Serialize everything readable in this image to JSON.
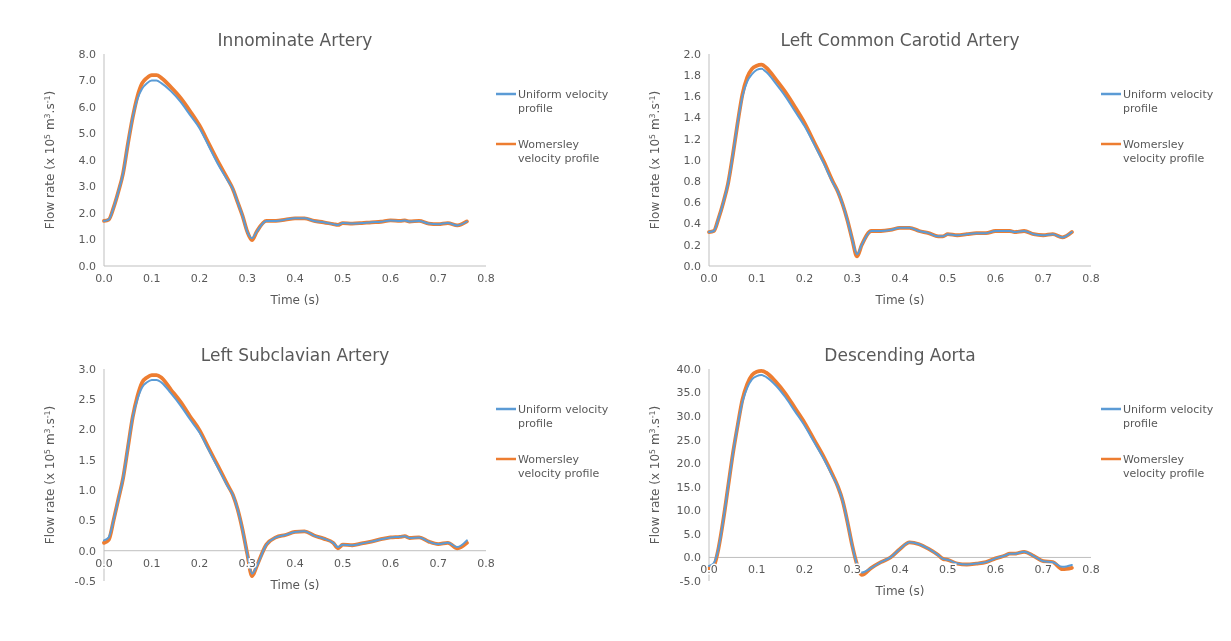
{
  "chart_data": [
    {
      "type": "line",
      "title": "Innominate Artery",
      "xlabel": "Time (s)",
      "ylabel": "Flow rate (x 10$^{5}$ m$^{3}$.s$^{-1}$)",
      "legend": "right",
      "xlim": [
        0,
        0.8
      ],
      "xticks": [
        {
          "value": 0,
          "label": "0.0"
        },
        {
          "value": 0.1,
          "label": "0.1"
        },
        {
          "value": 0.2,
          "label": "0.2"
        },
        {
          "value": 0.3,
          "label": "0.3"
        },
        {
          "value": 0.4,
          "label": "0.4"
        },
        {
          "value": 0.5,
          "label": "0.5"
        },
        {
          "value": 0.6,
          "label": "0.6"
        },
        {
          "value": 0.7,
          "label": "0.7"
        },
        {
          "value": 0.8,
          "label": "0.8"
        }
      ],
      "ylim": [
        0,
        8
      ],
      "yticks": [
        {
          "value": 0,
          "label": "0.0"
        },
        {
          "value": 1,
          "label": "1.0"
        },
        {
          "value": 2,
          "label": "2.0"
        },
        {
          "value": 3,
          "label": "3.0"
        },
        {
          "value": 4,
          "label": "4.0"
        },
        {
          "value": 5,
          "label": "5.0"
        },
        {
          "value": 6,
          "label": "6.0"
        },
        {
          "value": 7,
          "label": "7.0"
        },
        {
          "value": 8,
          "label": "8.0"
        }
      ],
      "x": [
        0,
        0.01,
        0.02,
        0.03,
        0.04,
        0.05,
        0.06,
        0.07,
        0.08,
        0.09,
        0.1,
        0.11,
        0.12,
        0.14,
        0.16,
        0.18,
        0.2,
        0.22,
        0.24,
        0.26,
        0.27,
        0.28,
        0.29,
        0.3,
        0.31,
        0.32,
        0.34,
        0.36,
        0.38,
        0.4,
        0.42,
        0.44,
        0.46,
        0.48,
        0.49,
        0.5,
        0.52,
        0.54,
        0.56,
        0.58,
        0.6,
        0.62,
        0.63,
        0.64,
        0.66,
        0.68,
        0.7,
        0.72,
        0.74,
        0.76
      ],
      "series": [
        {
          "name": "Uniform velocity profile",
          "color": "#5b9bd5",
          "values": [
            1.7,
            1.75,
            2.2,
            2.8,
            3.5,
            4.6,
            5.6,
            6.3,
            6.7,
            6.9,
            7.0,
            7.0,
            6.9,
            6.6,
            6.2,
            5.7,
            5.2,
            4.5,
            3.8,
            3.2,
            2.9,
            2.4,
            1.9,
            1.3,
            1.05,
            1.3,
            1.7,
            1.7,
            1.75,
            1.8,
            1.8,
            1.7,
            1.65,
            1.58,
            1.55,
            1.62,
            1.6,
            1.62,
            1.65,
            1.67,
            1.72,
            1.7,
            1.72,
            1.68,
            1.7,
            1.6,
            1.58,
            1.62,
            1.53,
            1.68
          ]
        },
        {
          "name": "Womersley velocity profile",
          "color": "#ed7d31",
          "values": [
            1.7,
            1.75,
            2.2,
            2.8,
            3.5,
            4.6,
            5.6,
            6.4,
            6.9,
            7.1,
            7.2,
            7.2,
            7.1,
            6.75,
            6.35,
            5.85,
            5.3,
            4.6,
            3.9,
            3.25,
            2.9,
            2.4,
            1.9,
            1.3,
            0.98,
            1.3,
            1.7,
            1.7,
            1.75,
            1.8,
            1.8,
            1.7,
            1.65,
            1.58,
            1.55,
            1.62,
            1.6,
            1.62,
            1.65,
            1.67,
            1.72,
            1.7,
            1.72,
            1.68,
            1.7,
            1.6,
            1.58,
            1.62,
            1.53,
            1.68
          ]
        }
      ]
    },
    {
      "type": "line",
      "title": "Left Common Carotid Artery",
      "xlabel": "Time (s)",
      "ylabel": "Flow rate (x 10$^{5}$ m$^{3}$.s$^{-1}$)",
      "legend": "right",
      "xlim": [
        0,
        0.8
      ],
      "xticks": [
        {
          "value": 0,
          "label": "0.0"
        },
        {
          "value": 0.1,
          "label": "0.1"
        },
        {
          "value": 0.2,
          "label": "0.2"
        },
        {
          "value": 0.3,
          "label": "0.3"
        },
        {
          "value": 0.4,
          "label": "0.4"
        },
        {
          "value": 0.5,
          "label": "0.5"
        },
        {
          "value": 0.6,
          "label": "0.6"
        },
        {
          "value": 0.7,
          "label": "0.7"
        },
        {
          "value": 0.8,
          "label": "0.8"
        }
      ],
      "ylim": [
        0,
        2
      ],
      "yticks": [
        {
          "value": 0,
          "label": "0.0"
        },
        {
          "value": 0.2,
          "label": "0.2"
        },
        {
          "value": 0.4,
          "label": "0.4"
        },
        {
          "value": 0.6,
          "label": "0.6"
        },
        {
          "value": 0.8,
          "label": "0.8"
        },
        {
          "value": 1,
          "label": "1.0"
        },
        {
          "value": 1.2,
          "label": "1.2"
        },
        {
          "value": 1.4,
          "label": "1.4"
        },
        {
          "value": 1.6,
          "label": "1.6"
        },
        {
          "value": 1.8,
          "label": "1.8"
        },
        {
          "value": 2,
          "label": "2.0"
        }
      ],
      "x": [
        0,
        0.01,
        0.02,
        0.03,
        0.04,
        0.05,
        0.06,
        0.07,
        0.08,
        0.09,
        0.1,
        0.11,
        0.12,
        0.14,
        0.16,
        0.18,
        0.2,
        0.22,
        0.24,
        0.26,
        0.27,
        0.28,
        0.29,
        0.3,
        0.31,
        0.32,
        0.34,
        0.36,
        0.38,
        0.4,
        0.42,
        0.44,
        0.46,
        0.48,
        0.49,
        0.5,
        0.52,
        0.54,
        0.56,
        0.58,
        0.6,
        0.62,
        0.63,
        0.64,
        0.66,
        0.68,
        0.7,
        0.72,
        0.74,
        0.76
      ],
      "series": [
        {
          "name": "Uniform velocity profile",
          "color": "#5b9bd5",
          "values": [
            0.32,
            0.33,
            0.45,
            0.6,
            0.78,
            1.05,
            1.35,
            1.6,
            1.74,
            1.81,
            1.85,
            1.86,
            1.83,
            1.72,
            1.6,
            1.46,
            1.32,
            1.15,
            0.97,
            0.78,
            0.7,
            0.58,
            0.43,
            0.25,
            0.11,
            0.2,
            0.33,
            0.33,
            0.34,
            0.36,
            0.36,
            0.33,
            0.31,
            0.28,
            0.28,
            0.3,
            0.29,
            0.3,
            0.31,
            0.31,
            0.33,
            0.33,
            0.33,
            0.32,
            0.33,
            0.3,
            0.29,
            0.3,
            0.27,
            0.32
          ]
        },
        {
          "name": "Womersley velocity profile",
          "color": "#ed7d31",
          "values": [
            0.32,
            0.33,
            0.45,
            0.6,
            0.78,
            1.05,
            1.35,
            1.62,
            1.78,
            1.86,
            1.89,
            1.9,
            1.87,
            1.76,
            1.64,
            1.5,
            1.35,
            1.17,
            0.99,
            0.79,
            0.7,
            0.58,
            0.43,
            0.25,
            0.09,
            0.2,
            0.33,
            0.33,
            0.34,
            0.36,
            0.36,
            0.33,
            0.31,
            0.28,
            0.28,
            0.3,
            0.29,
            0.3,
            0.31,
            0.31,
            0.33,
            0.33,
            0.33,
            0.32,
            0.33,
            0.3,
            0.29,
            0.3,
            0.27,
            0.32
          ]
        }
      ]
    },
    {
      "type": "line",
      "title": "Left Subclavian Artery",
      "xlabel": "Time (s)",
      "ylabel": "Flow rate (x 10$^{5}$ m$^{3}$.s$^{-1}$)",
      "legend": "right",
      "xlim": [
        0,
        0.8
      ],
      "xticks": [
        {
          "value": 0,
          "label": "0.0"
        },
        {
          "value": 0.1,
          "label": "0.1"
        },
        {
          "value": 0.2,
          "label": "0.2"
        },
        {
          "value": 0.3,
          "label": "0.3"
        },
        {
          "value": 0.4,
          "label": "0.4"
        },
        {
          "value": 0.5,
          "label": "0.5"
        },
        {
          "value": 0.6,
          "label": "0.6"
        },
        {
          "value": 0.7,
          "label": "0.7"
        },
        {
          "value": 0.8,
          "label": "0.8"
        }
      ],
      "ylim": [
        -0.5,
        3
      ],
      "yticks": [
        {
          "value": -0.5,
          "label": "-0.5"
        },
        {
          "value": 0,
          "label": "0.0"
        },
        {
          "value": 0.5,
          "label": "0.5"
        },
        {
          "value": 1,
          "label": "1.0"
        },
        {
          "value": 1.5,
          "label": "1.5"
        },
        {
          "value": 2,
          "label": "2.0"
        },
        {
          "value": 2.5,
          "label": "2.5"
        },
        {
          "value": 3,
          "label": "3.0"
        }
      ],
      "x": [
        0,
        0.01,
        0.02,
        0.03,
        0.04,
        0.05,
        0.06,
        0.07,
        0.08,
        0.09,
        0.1,
        0.11,
        0.12,
        0.14,
        0.16,
        0.18,
        0.2,
        0.22,
        0.24,
        0.26,
        0.27,
        0.28,
        0.29,
        0.3,
        0.31,
        0.32,
        0.34,
        0.36,
        0.38,
        0.4,
        0.42,
        0.44,
        0.46,
        0.48,
        0.49,
        0.5,
        0.52,
        0.54,
        0.56,
        0.58,
        0.6,
        0.62,
        0.63,
        0.64,
        0.66,
        0.68,
        0.7,
        0.72,
        0.74,
        0.76
      ],
      "series": [
        {
          "name": "Uniform velocity profile",
          "color": "#5b9bd5",
          "values": [
            0.17,
            0.22,
            0.5,
            0.85,
            1.2,
            1.7,
            2.2,
            2.5,
            2.7,
            2.78,
            2.82,
            2.82,
            2.78,
            2.6,
            2.4,
            2.17,
            1.95,
            1.65,
            1.35,
            1.05,
            0.92,
            0.68,
            0.35,
            -0.05,
            -0.38,
            -0.25,
            0.1,
            0.22,
            0.26,
            0.31,
            0.32,
            0.25,
            0.2,
            0.13,
            0.06,
            0.1,
            0.09,
            0.12,
            0.15,
            0.19,
            0.22,
            0.23,
            0.24,
            0.21,
            0.22,
            0.15,
            0.11,
            0.13,
            0.06,
            0.17
          ]
        },
        {
          "name": "Womersley velocity profile",
          "color": "#ed7d31",
          "values": [
            0.13,
            0.18,
            0.5,
            0.85,
            1.2,
            1.7,
            2.2,
            2.55,
            2.78,
            2.86,
            2.9,
            2.9,
            2.86,
            2.66,
            2.46,
            2.22,
            1.99,
            1.68,
            1.38,
            1.07,
            0.92,
            0.68,
            0.35,
            -0.05,
            -0.42,
            -0.25,
            0.1,
            0.22,
            0.26,
            0.31,
            0.32,
            0.25,
            0.2,
            0.13,
            0.04,
            0.1,
            0.09,
            0.12,
            0.15,
            0.19,
            0.22,
            0.23,
            0.24,
            0.21,
            0.22,
            0.15,
            0.11,
            0.13,
            0.04,
            0.13
          ]
        }
      ]
    },
    {
      "type": "line",
      "title": "Descending Aorta",
      "xlabel": "Time (s)",
      "ylabel": "Flow rate (x 10$^{5}$ m$^{3}$.s$^{-1}$)",
      "legend": "right",
      "xlim": [
        0,
        0.8
      ],
      "xticks": [
        {
          "value": 0,
          "label": "0.0"
        },
        {
          "value": 0.1,
          "label": "0.1"
        },
        {
          "value": 0.2,
          "label": "0.2"
        },
        {
          "value": 0.3,
          "label": "0.3"
        },
        {
          "value": 0.4,
          "label": "0.4"
        },
        {
          "value": 0.5,
          "label": "0.5"
        },
        {
          "value": 0.6,
          "label": "0.6"
        },
        {
          "value": 0.7,
          "label": "0.7"
        },
        {
          "value": 0.8,
          "label": "0.8"
        }
      ],
      "ylim": [
        -5,
        40
      ],
      "yticks": [
        {
          "value": -5,
          "label": "-5.0"
        },
        {
          "value": 0,
          "label": "0.0"
        },
        {
          "value": 5,
          "label": "5.0"
        },
        {
          "value": 10,
          "label": "10.0"
        },
        {
          "value": 15,
          "label": "15.0"
        },
        {
          "value": 20,
          "label": "20.0"
        },
        {
          "value": 25,
          "label": "25.0"
        },
        {
          "value": 30,
          "label": "30.0"
        },
        {
          "value": 35,
          "label": "35.0"
        },
        {
          "value": 40,
          "label": "40.0"
        }
      ],
      "x": [
        0,
        0.01,
        0.02,
        0.03,
        0.04,
        0.05,
        0.06,
        0.07,
        0.08,
        0.09,
        0.1,
        0.11,
        0.12,
        0.14,
        0.16,
        0.18,
        0.2,
        0.22,
        0.24,
        0.26,
        0.27,
        0.28,
        0.29,
        0.3,
        0.31,
        0.32,
        0.34,
        0.36,
        0.38,
        0.4,
        0.42,
        0.44,
        0.46,
        0.48,
        0.49,
        0.5,
        0.52,
        0.54,
        0.56,
        0.58,
        0.6,
        0.62,
        0.63,
        0.64,
        0.66,
        0.68,
        0.7,
        0.72,
        0.74,
        0.76
      ],
      "series": [
        {
          "name": "Uniform velocity profile",
          "color": "#5b9bd5",
          "values": [
            -1.8,
            -1.2,
            2,
            8,
            15,
            22,
            28,
            33,
            36,
            37.8,
            38.5,
            38.7,
            38.3,
            36.5,
            34,
            31,
            28,
            24.5,
            21,
            17,
            15,
            12,
            7.5,
            2.5,
            -1.5,
            -3.2,
            -2.2,
            -1,
            0,
            1.8,
            3.2,
            2.8,
            1.8,
            0.5,
            -0.3,
            -0.5,
            -1.3,
            -1.5,
            -1.3,
            -1,
            -0.2,
            0.4,
            0.8,
            0.8,
            1.2,
            0.3,
            -0.8,
            -1,
            -2,
            -1.6
          ]
        },
        {
          "name": "Womersley velocity profile",
          "color": "#ed7d31",
          "values": [
            -2.3,
            -1.8,
            2,
            8,
            15,
            22,
            28,
            33.5,
            36.8,
            38.7,
            39.4,
            39.6,
            39.2,
            37.3,
            34.8,
            31.7,
            28.6,
            25,
            21.4,
            17.3,
            15,
            12,
            7.5,
            2.5,
            -1.5,
            -3.7,
            -2.2,
            -1,
            0,
            1.8,
            3.2,
            2.8,
            1.8,
            0.5,
            -0.3,
            -0.5,
            -1.3,
            -1.5,
            -1.3,
            -1,
            -0.2,
            0.4,
            0.8,
            0.8,
            1.2,
            0.3,
            -0.8,
            -1,
            -2.5,
            -2.2
          ]
        }
      ]
    }
  ]
}
